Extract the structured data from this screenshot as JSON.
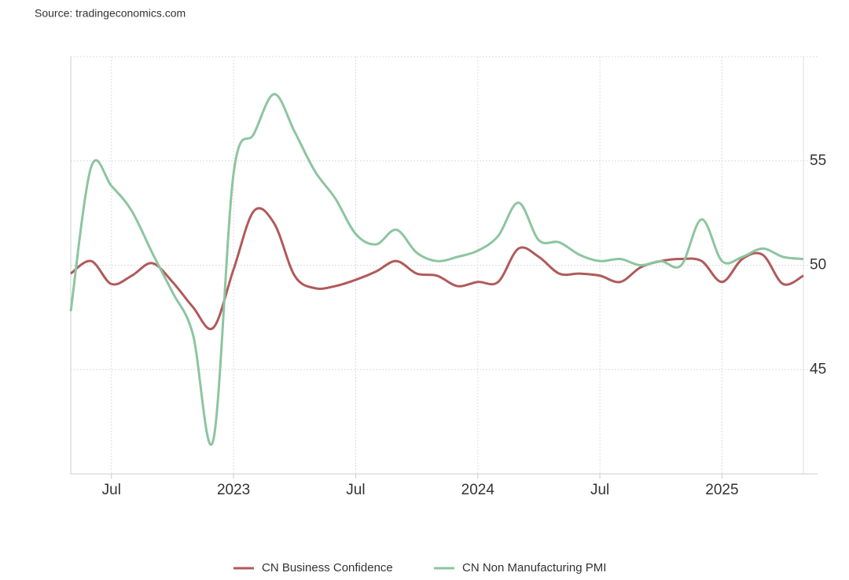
{
  "chart_data": {
    "type": "line",
    "source": "Source: tradingeconomics.com",
    "categories": [
      null,
      null,
      "Jul",
      null,
      null,
      null,
      null,
      null,
      "2023",
      null,
      null,
      null,
      null,
      null,
      "Jul",
      null,
      null,
      null,
      null,
      null,
      "2024",
      null,
      null,
      null,
      null,
      null,
      "Jul",
      null,
      null,
      null,
      null,
      null,
      "2025",
      null,
      null,
      null,
      null
    ],
    "series": [
      {
        "name": "CN Business Confidence",
        "color": "#b05a5a",
        "values": [
          49.6,
          50.2,
          49.1,
          49.5,
          50.1,
          49.2,
          48.0,
          47.0,
          49.8,
          52.6,
          52.0,
          49.5,
          48.9,
          49.0,
          49.3,
          49.7,
          50.2,
          49.6,
          49.5,
          49.0,
          49.2,
          49.2,
          50.8,
          50.4,
          49.6,
          49.6,
          49.5,
          49.2,
          49.9,
          50.2,
          50.3,
          50.2,
          49.2,
          50.3,
          50.5,
          49.1,
          49.5
        ]
      },
      {
        "name": "CN Non Manufacturing PMI",
        "color": "#8cc5a0",
        "values": [
          47.8,
          54.7,
          53.8,
          52.6,
          50.6,
          48.7,
          46.7,
          41.6,
          54.4,
          56.3,
          58.2,
          56.4,
          54.5,
          53.2,
          51.5,
          51.0,
          51.7,
          50.6,
          50.2,
          50.4,
          50.7,
          51.4,
          53.0,
          51.2,
          51.1,
          50.5,
          50.2,
          50.3,
          50.0,
          50.2,
          50.0,
          52.2,
          50.2,
          50.4,
          50.8,
          50.4,
          50.3
        ]
      }
    ],
    "ylim": [
      40,
      60
    ],
    "yticks": [
      45,
      50,
      55
    ],
    "grid": true,
    "y_axis_side": "right",
    "legend": "bottom"
  }
}
